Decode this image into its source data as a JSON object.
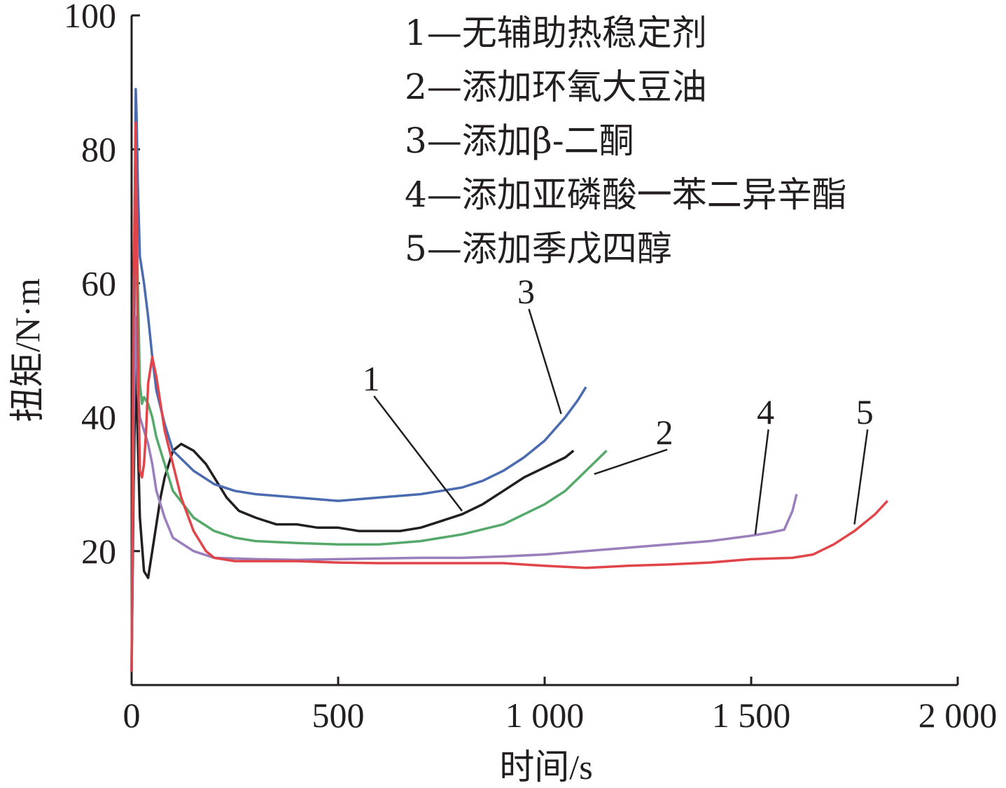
{
  "chart_data": {
    "type": "line",
    "xlabel": "时间/s",
    "ylabel": "扭矩/N·m",
    "xlim": [
      0,
      2000
    ],
    "ylim": [
      0,
      100
    ],
    "x_ticks": [
      0,
      500,
      1000,
      1500,
      2000
    ],
    "x_tick_labels": [
      "0",
      "500",
      "1 000",
      "1 500",
      "2 000"
    ],
    "y_ticks": [
      20,
      40,
      60,
      80,
      100
    ],
    "y_tick_labels": [
      "20",
      "40",
      "60",
      "80",
      "100"
    ],
    "grid": false,
    "legend_position": "top",
    "legend": [
      "1—无辅助热稳定剂",
      "2—添加环氧大豆油",
      "3—添加β-二酮",
      "4—添加亚磷酸一苯二异辛酯",
      "5—添加季戊四醇"
    ],
    "series": [
      {
        "name": "1",
        "color": "#231f20",
        "x": [
          0,
          5,
          10,
          20,
          30,
          40,
          50,
          60,
          70,
          80,
          90,
          100,
          120,
          150,
          180,
          200,
          230,
          260,
          300,
          350,
          400,
          450,
          500,
          550,
          600,
          650,
          700,
          750,
          800,
          850,
          900,
          950,
          1000,
          1050,
          1070
        ],
        "y": [
          2,
          30,
          48,
          25,
          17,
          16,
          20,
          24,
          28,
          31,
          33,
          35,
          36,
          35,
          33,
          31,
          28,
          26,
          25,
          24,
          24,
          23.5,
          23.5,
          23,
          23,
          23,
          23.5,
          24.5,
          25.5,
          27,
          29,
          31,
          32.5,
          34,
          35
        ]
      },
      {
        "name": "2",
        "color": "#55a96a",
        "x": [
          0,
          5,
          10,
          15,
          20,
          25,
          30,
          40,
          50,
          60,
          80,
          100,
          150,
          200,
          250,
          300,
          400,
          500,
          600,
          700,
          800,
          900,
          1000,
          1050,
          1100,
          1150
        ],
        "y": [
          2,
          40,
          79,
          60,
          45,
          42,
          43,
          42,
          40,
          37,
          33,
          29,
          25,
          23,
          22,
          21.5,
          21.2,
          21,
          21,
          21.5,
          22.5,
          24,
          27,
          29,
          32,
          35
        ]
      },
      {
        "name": "3",
        "color": "#4a6bb0",
        "x": [
          0,
          5,
          10,
          12,
          15,
          20,
          25,
          30,
          40,
          50,
          60,
          80,
          100,
          150,
          200,
          250,
          300,
          400,
          500,
          600,
          700,
          800,
          850,
          900,
          950,
          1000,
          1050,
          1080,
          1100
        ],
        "y": [
          2,
          50,
          89,
          85,
          75,
          64,
          62,
          60,
          55,
          49,
          44,
          39,
          35,
          32,
          30,
          29,
          28.5,
          28,
          27.5,
          28,
          28.5,
          29.5,
          30.5,
          32,
          34,
          36.5,
          40,
          42.5,
          44.5
        ]
      },
      {
        "name": "4",
        "color": "#9a7fbd",
        "x": [
          0,
          5,
          10,
          15,
          20,
          30,
          40,
          50,
          60,
          80,
          100,
          150,
          200,
          300,
          400,
          500,
          600,
          700,
          800,
          900,
          1000,
          1100,
          1200,
          1300,
          1400,
          1500,
          1550,
          1580,
          1600,
          1610
        ],
        "y": [
          2,
          40,
          55,
          44,
          40,
          38,
          36,
          33,
          29,
          25,
          22,
          20,
          19,
          18.8,
          18.7,
          18.8,
          18.9,
          19,
          19,
          19.2,
          19.5,
          20,
          20.5,
          21,
          21.5,
          22.3,
          22.8,
          23.2,
          26,
          28.5
        ]
      },
      {
        "name": "5",
        "color": "#e0454a",
        "x": [
          0,
          5,
          10,
          15,
          20,
          25,
          30,
          35,
          40,
          50,
          60,
          70,
          80,
          100,
          120,
          150,
          180,
          200,
          250,
          300,
          400,
          500,
          600,
          700,
          800,
          900,
          1000,
          1100,
          1200,
          1300,
          1400,
          1500,
          1600,
          1650,
          1700,
          1750,
          1800,
          1830
        ],
        "y": [
          2,
          60,
          84,
          50,
          32,
          31,
          33,
          38,
          45,
          49,
          46,
          42,
          38,
          33,
          28,
          23,
          20,
          19,
          18.5,
          18.5,
          18.5,
          18.3,
          18.2,
          18.2,
          18.2,
          18.2,
          17.8,
          17.5,
          17.8,
          18,
          18.3,
          18.8,
          19,
          19.5,
          21,
          23,
          25.5,
          27.5
        ]
      }
    ],
    "curve_labels": [
      {
        "text": "1",
        "data_x": 580,
        "data_y": 44,
        "line_to_x": 800,
        "line_to_y": 26
      },
      {
        "text": "2",
        "data_x": 1290,
        "data_y": 36,
        "line_to_x": 1120,
        "line_to_y": 31.5
      },
      {
        "text": "3",
        "data_x": 955,
        "data_y": 57,
        "line_to_x": 1040,
        "line_to_y": 40.5
      },
      {
        "text": "4",
        "data_x": 1535,
        "data_y": 39,
        "line_to_x": 1510,
        "line_to_y": 22.5
      },
      {
        "text": "5",
        "data_x": 1775,
        "data_y": 39,
        "line_to_x": 1750,
        "line_to_y": 24
      }
    ]
  }
}
